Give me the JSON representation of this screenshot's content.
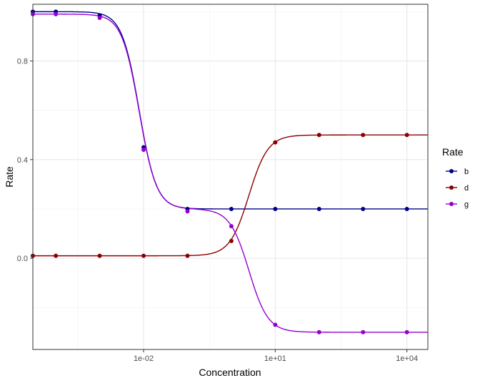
{
  "chart_data": {
    "type": "line",
    "x_scale": "log10",
    "xlabel": "Concentration",
    "ylabel": "Rate",
    "x_ticks": [
      {
        "value": 0.01,
        "label": "1e-02"
      },
      {
        "value": 10,
        "label": "1e+01"
      },
      {
        "value": 10000,
        "label": "1e+04"
      }
    ],
    "y_ticks": [
      {
        "value": 0.0,
        "label": "0.0"
      },
      {
        "value": 0.4,
        "label": "0.4"
      },
      {
        "value": 0.8,
        "label": "0.8"
      }
    ],
    "xlim": [
      3e-05,
      30000
    ],
    "ylim": [
      -0.37,
      1.03
    ],
    "grid": true,
    "legend": {
      "title": "Rate",
      "position": "right"
    },
    "x": [
      3e-05,
      0.0001,
      0.001,
      0.01,
      0.1,
      1,
      10,
      100,
      1000,
      10000
    ],
    "series": [
      {
        "name": "b",
        "color": "#00008B",
        "values": [
          1.0,
          1.0,
          0.985,
          0.45,
          0.2,
          0.2,
          0.2,
          0.2,
          0.2,
          0.2
        ],
        "curve": {
          "top": 1.0,
          "bottom": 0.2,
          "log_ec50": -2.1,
          "hill": 2.2
        }
      },
      {
        "name": "d",
        "color": "#8B0000",
        "values": [
          0.01,
          0.01,
          0.01,
          0.01,
          0.01,
          0.07,
          0.47,
          0.5,
          0.5,
          0.5
        ],
        "curve": {
          "top": 0.01,
          "bottom": 0.5,
          "log_ec50": 0.4,
          "hill": 2.0
        }
      },
      {
        "name": "g",
        "color": "#9400D3",
        "values": [
          0.99,
          0.99,
          0.975,
          0.44,
          0.19,
          0.13,
          -0.27,
          -0.3,
          -0.3,
          -0.3
        ],
        "curve_sum": [
          {
            "top": 0.79,
            "bottom": 0.0,
            "log_ec50": -2.1,
            "hill": 2.2
          },
          {
            "top": 0.2,
            "bottom": -0.3,
            "log_ec50": 0.4,
            "hill": 2.0
          }
        ]
      }
    ]
  }
}
